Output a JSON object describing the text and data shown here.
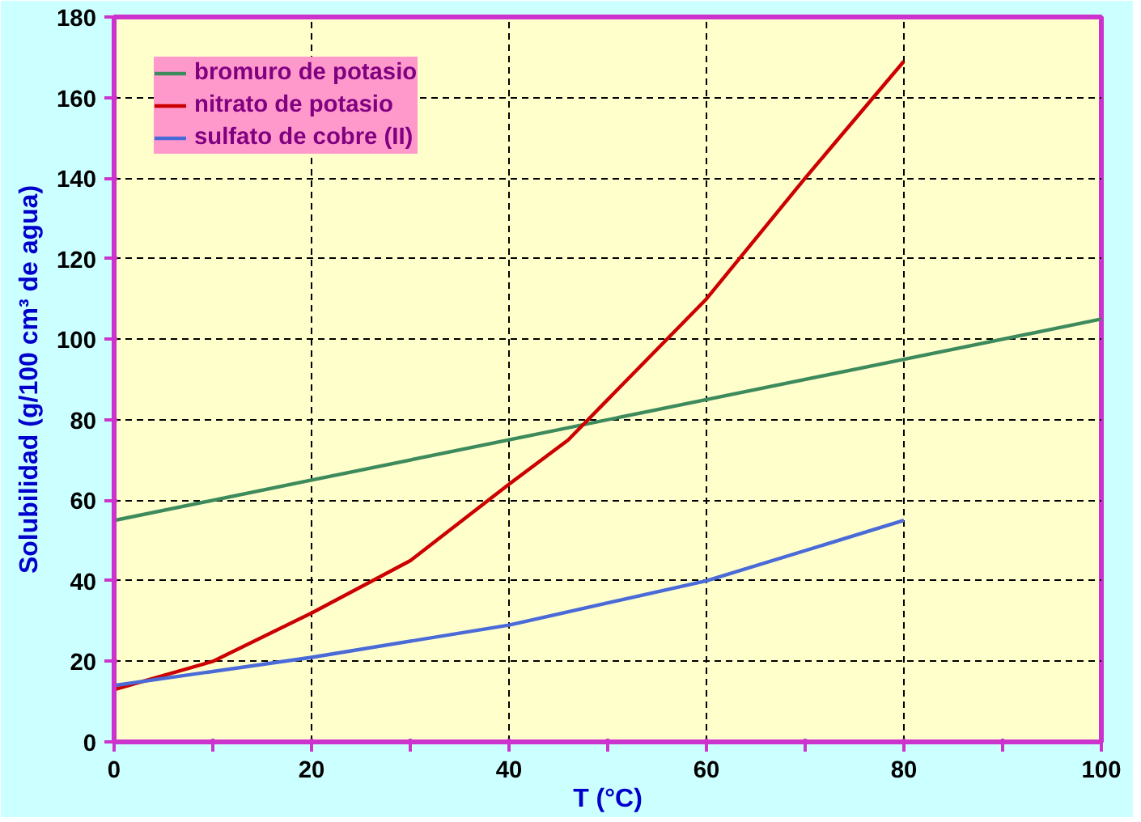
{
  "chart_data": {
    "type": "line",
    "xlabel": "T (°C)",
    "ylabel": "Solubilidad (g/100 cm³ de agua)",
    "xlim": [
      0,
      100
    ],
    "ylim": [
      0,
      180
    ],
    "xticks": [
      0,
      {
        "value": 10,
        "label": null
      },
      20,
      {
        "value": 30,
        "label": null
      },
      40,
      {
        "value": 50,
        "label": null
      },
      60,
      {
        "value": 70,
        "label": null
      },
      80,
      {
        "value": 90,
        "label": null
      },
      100
    ],
    "yticks": [
      0,
      20,
      40,
      60,
      80,
      100,
      120,
      140,
      160,
      180
    ],
    "grid": true,
    "legend": "top left",
    "line_style": "solid",
    "series": [
      {
        "name": "bromuro de potasio",
        "color": "#3d8a5c",
        "x": [
          0,
          20,
          40,
          60,
          80,
          100
        ],
        "values": [
          55,
          65,
          75,
          85,
          95,
          105
        ]
      },
      {
        "name": "nitrato de potasio",
        "color": "#cc0000",
        "x": [
          0,
          10,
          20,
          30,
          40,
          46,
          50,
          60,
          70,
          80
        ],
        "values": [
          13,
          20,
          32,
          45,
          64,
          75,
          85,
          110,
          140,
          169
        ]
      },
      {
        "name": "sulfato de cobre (II)",
        "color": "#4a6ad8",
        "x": [
          0,
          20,
          40,
          60,
          80
        ],
        "values": [
          14,
          21,
          29,
          40,
          55
        ]
      }
    ]
  }
}
